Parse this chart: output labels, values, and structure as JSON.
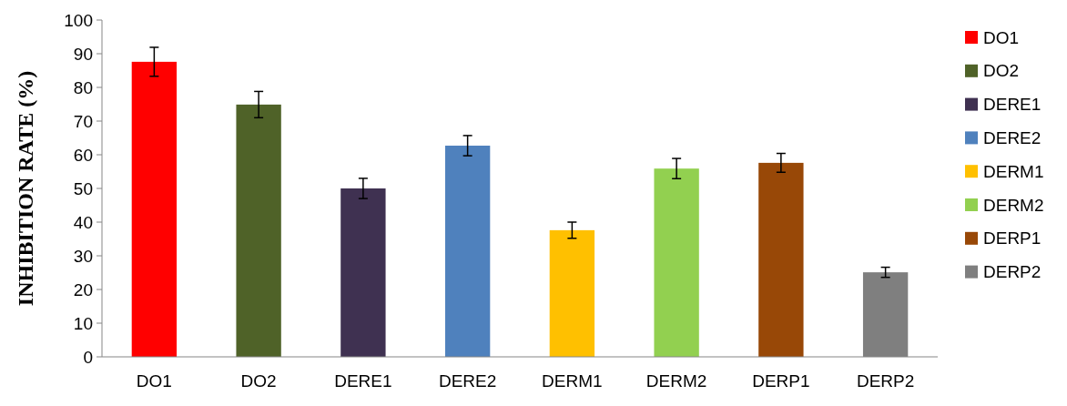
{
  "chart_data": {
    "type": "bar",
    "ylabel": "INHIBITION RATE (%)",
    "stacked": true,
    "categories": [
      "DO1",
      "DO2",
      "DERE1",
      "DERE2",
      "DERM1",
      "DERM2",
      "DERP1",
      "DERP2"
    ],
    "series": [
      {
        "name": "DO1",
        "color": "#ff0000",
        "values": [
          87.6,
          null,
          null,
          null,
          null,
          null,
          null,
          null
        ],
        "errors": [
          4.3,
          null,
          null,
          null,
          null,
          null,
          null,
          null
        ]
      },
      {
        "name": "DO2",
        "color": "#4f6228",
        "values": [
          null,
          74.9,
          null,
          null,
          null,
          null,
          null,
          null
        ],
        "errors": [
          null,
          3.9,
          null,
          null,
          null,
          null,
          null,
          null
        ]
      },
      {
        "name": "DERE1",
        "color": "#3f3151",
        "values": [
          null,
          null,
          50,
          null,
          null,
          null,
          null,
          null
        ],
        "errors": [
          null,
          null,
          3,
          null,
          null,
          null,
          null,
          null
        ]
      },
      {
        "name": "DERE2",
        "color": "#4f81bd",
        "values": [
          null,
          null,
          null,
          62.7,
          null,
          null,
          null,
          null
        ],
        "errors": [
          null,
          null,
          null,
          3,
          null,
          null,
          null,
          null
        ]
      },
      {
        "name": "DERM1",
        "color": "#ffc000",
        "values": [
          null,
          null,
          null,
          null,
          37.6,
          null,
          null,
          null
        ],
        "errors": [
          null,
          null,
          null,
          null,
          2.4,
          null,
          null,
          null
        ]
      },
      {
        "name": "DERM2",
        "color": "#92d050",
        "values": [
          null,
          null,
          null,
          null,
          null,
          55.9,
          null,
          null
        ],
        "errors": [
          null,
          null,
          null,
          null,
          null,
          3,
          null,
          null
        ]
      },
      {
        "name": "DERP1",
        "color": "#984807",
        "values": [
          null,
          null,
          null,
          null,
          null,
          null,
          57.6,
          null
        ],
        "errors": [
          null,
          null,
          null,
          null,
          null,
          null,
          2.8,
          null
        ]
      },
      {
        "name": "DERP2",
        "color": "#7f7f7f",
        "values": [
          null,
          null,
          null,
          null,
          null,
          null,
          null,
          25.1
        ],
        "errors": [
          null,
          null,
          null,
          null,
          null,
          null,
          null,
          1.5
        ]
      }
    ],
    "ylim": [
      0,
      100
    ],
    "yticks": [
      0,
      10,
      20,
      30,
      40,
      50,
      60,
      70,
      80,
      90,
      100
    ],
    "grid": false,
    "legend": "right"
  }
}
